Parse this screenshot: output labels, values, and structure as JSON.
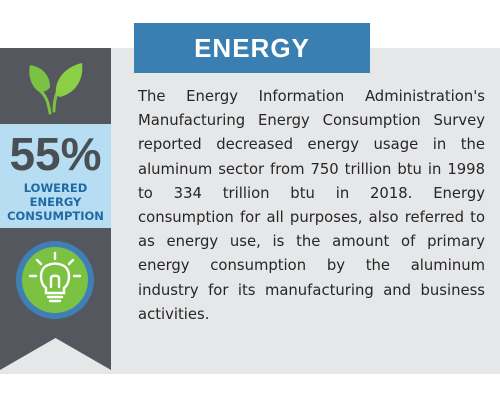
{
  "header": {
    "title": "ENERGY"
  },
  "sidebar": {
    "stat_value": "55%",
    "stat_label_lines": [
      "LOWERED",
      "ENERGY",
      "CONSUMPTION"
    ],
    "top_icon": "leaf-icon",
    "bottom_icon": "lightbulb-icon"
  },
  "body": {
    "paragraph": "The Energy Information Administration's Manufacturing Energy Consumption Survey reported decreased energy usage in the aluminum sector from 750 trillion btu in 1998 to 334 trillion btu in 2018. Energy consumption for all purposes, also referred to as energy use, is the amount of primary energy consumption by the aluminum industry for its manufacturing and business activities."
  },
  "colors": {
    "title_bg": "#3a7fb1",
    "ribbon": "#54585e",
    "stat_box": "#b7ddf3",
    "stat_label": "#1f6aa5",
    "panel_bg": "#e6e7e9",
    "leaf": "#7cc242",
    "bulb_ring": "#3f7fb6",
    "bulb_fill": "#7cc242"
  }
}
